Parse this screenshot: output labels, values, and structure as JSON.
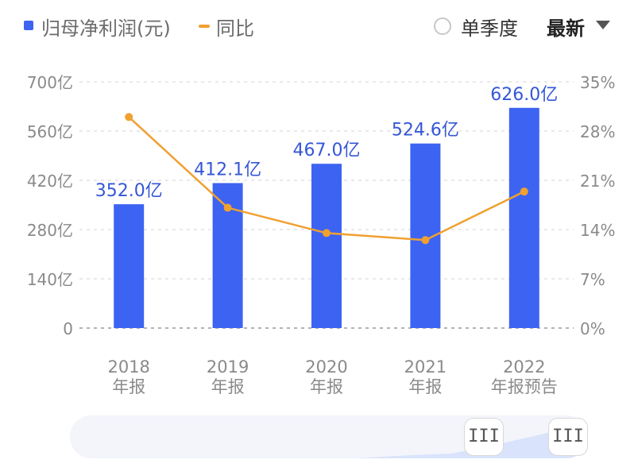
{
  "legend": {
    "bar_label": "归母净利润(元)",
    "line_label": "同比"
  },
  "controls": {
    "period_toggle_label": "单季度",
    "sort_dropdown_label": "最新",
    "slider_handle_glyph": "III"
  },
  "colors": {
    "bar": "#3d63f2",
    "line": "#f0a030",
    "bar_label": "#3557d6",
    "axis_text": "#8a8a8a"
  },
  "chart_data": {
    "type": "bar",
    "categories": [
      "2018\n年报",
      "2019\n年报",
      "2020\n年报",
      "2021\n年报",
      "2022\n年报预告"
    ],
    "series": [
      {
        "name": "归母净利润(元)",
        "type": "bar",
        "axis": "left",
        "values": [
          352.0,
          412.1,
          467.0,
          524.6,
          626.0
        ],
        "value_labels": [
          "352.0亿",
          "412.1亿",
          "467.0亿",
          "524.6亿",
          "626.0亿"
        ]
      },
      {
        "name": "同比",
        "type": "line",
        "axis": "right",
        "values": [
          30.0,
          17.1,
          13.5,
          12.5,
          19.4
        ]
      }
    ],
    "y_left": {
      "ylim": [
        0,
        700
      ],
      "ticks": [
        0,
        140,
        280,
        420,
        560,
        700
      ],
      "tick_labels": [
        "0",
        "140亿",
        "280亿",
        "420亿",
        "560亿",
        "700亿"
      ]
    },
    "y_right": {
      "ylim": [
        0,
        35
      ],
      "ticks": [
        0,
        7,
        14,
        21,
        28,
        35
      ],
      "tick_labels": [
        "0%",
        "7%",
        "14%",
        "21%",
        "28%",
        "35%"
      ]
    },
    "grid": true,
    "legend_position": "top-left"
  }
}
